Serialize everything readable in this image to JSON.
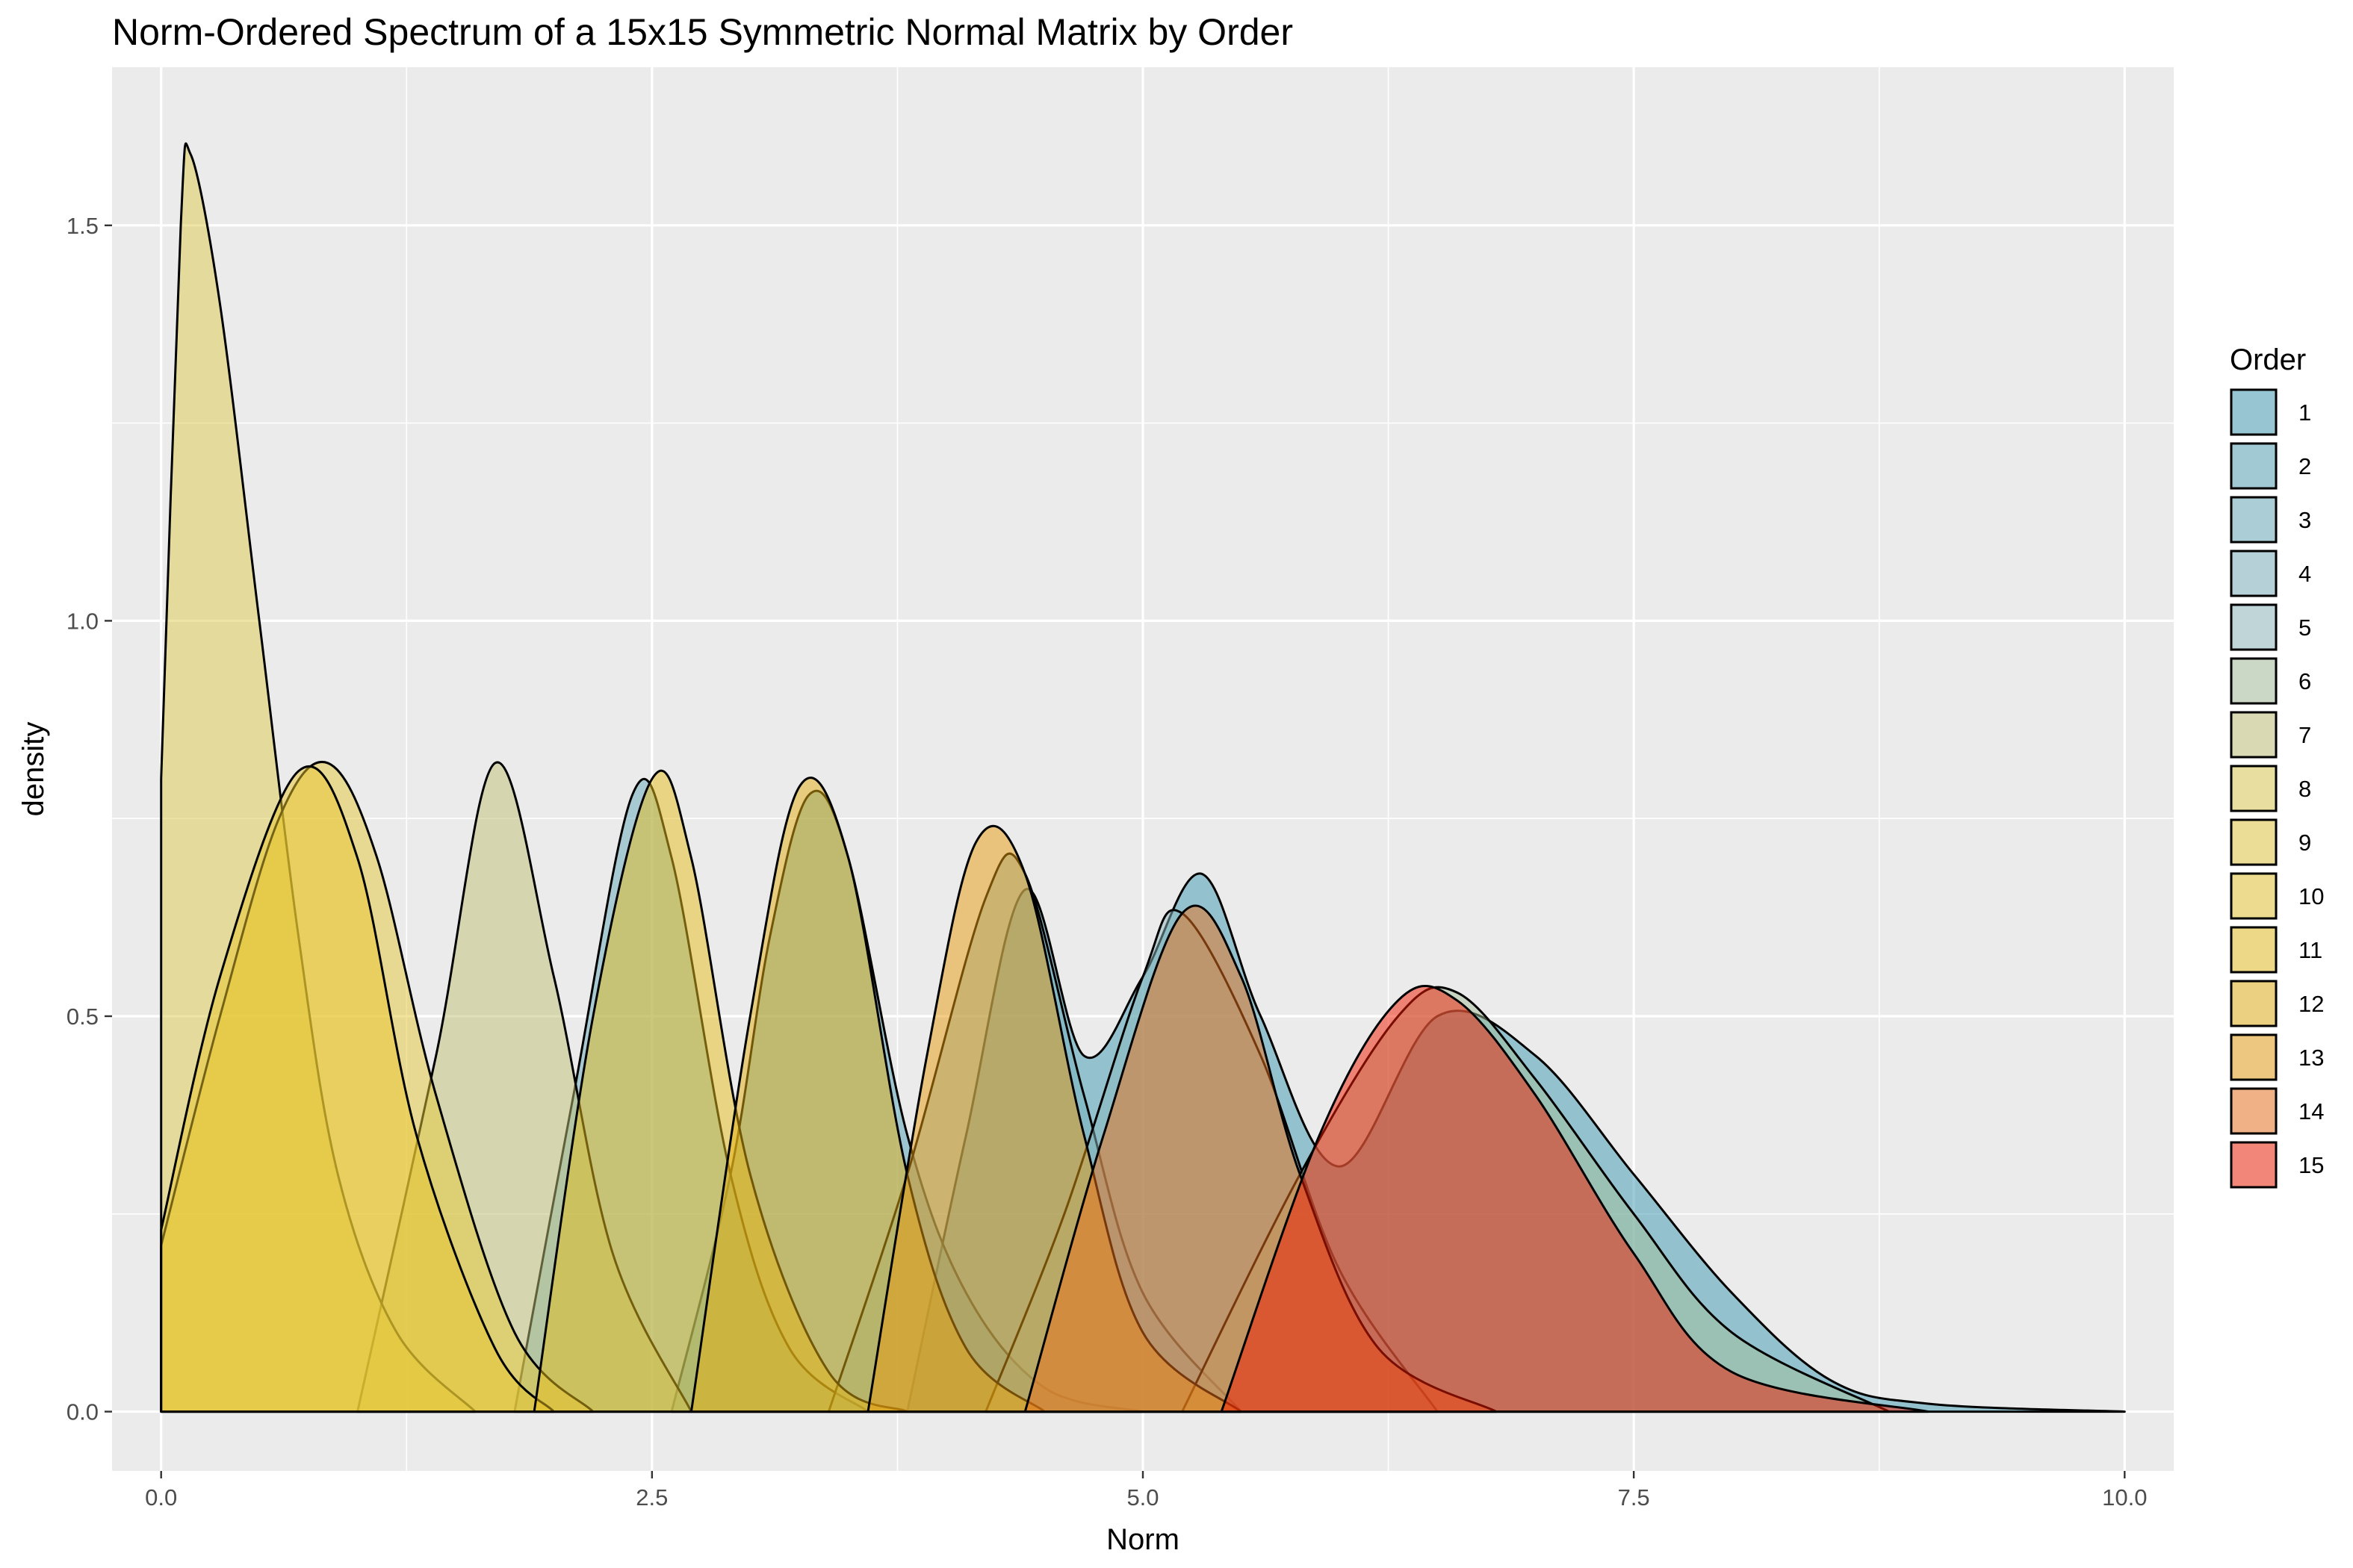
{
  "chart_data": {
    "type": "area",
    "title": "Norm-Ordered Spectrum of a 15x15 Symmetric Normal Matrix by Order",
    "xlabel": "Norm",
    "ylabel": "density",
    "xlim": [
      -0.25,
      10.25
    ],
    "ylim": [
      -0.075,
      1.7
    ],
    "x_ticks": [
      0.0,
      2.5,
      5.0,
      7.5,
      10.0
    ],
    "x_tick_labels": [
      "0.0",
      "2.5",
      "5.0",
      "7.5",
      "10.0"
    ],
    "y_ticks": [
      0.0,
      0.5,
      1.0,
      1.5
    ],
    "y_tick_labels": [
      "0.0",
      "0.5",
      "1.0",
      "1.5"
    ],
    "grid": true,
    "legend": {
      "title": "Order",
      "position": "right"
    },
    "series": [
      {
        "name": "1",
        "color": "#3B9AB2",
        "points": [
          [
            3.8,
            0
          ],
          [
            4.1,
            0.35
          ],
          [
            4.4,
            0.66
          ],
          [
            4.7,
            0.45
          ],
          [
            5.0,
            0.55
          ],
          [
            5.3,
            0.68
          ],
          [
            5.6,
            0.5
          ],
          [
            6.0,
            0.31
          ],
          [
            6.5,
            0.5
          ],
          [
            7.0,
            0.45
          ],
          [
            7.5,
            0.3
          ],
          [
            8.0,
            0.15
          ],
          [
            8.5,
            0.04
          ],
          [
            9.0,
            0.01
          ],
          [
            10.0,
            0
          ]
        ]
      },
      {
        "name": "2",
        "color": "#4DA0B5",
        "points": [
          [
            2.6,
            0
          ],
          [
            2.9,
            0.3
          ],
          [
            3.1,
            0.6
          ],
          [
            3.3,
            0.78
          ],
          [
            3.5,
            0.7
          ],
          [
            3.8,
            0.35
          ],
          [
            4.1,
            0.15
          ],
          [
            4.5,
            0.03
          ],
          [
            5.0,
            0
          ]
        ]
      },
      {
        "name": "3",
        "color": "#62A8B9",
        "points": [
          [
            1.8,
            0
          ],
          [
            2.1,
            0.4
          ],
          [
            2.4,
            0.78
          ],
          [
            2.6,
            0.7
          ],
          [
            2.9,
            0.3
          ],
          [
            3.2,
            0.08
          ],
          [
            3.6,
            0
          ]
        ]
      },
      {
        "name": "4",
        "color": "#77B0BC",
        "points": [
          [
            3.4,
            0
          ],
          [
            3.8,
            0.3
          ],
          [
            4.2,
            0.65
          ],
          [
            4.4,
            0.68
          ],
          [
            4.7,
            0.4
          ],
          [
            5.0,
            0.15
          ],
          [
            5.5,
            0
          ]
        ]
      },
      {
        "name": "5",
        "color": "#8CB8BC",
        "points": [
          [
            4.2,
            0
          ],
          [
            4.6,
            0.25
          ],
          [
            5.0,
            0.55
          ],
          [
            5.2,
            0.63
          ],
          [
            5.6,
            0.45
          ],
          [
            6.0,
            0.18
          ],
          [
            6.5,
            0
          ]
        ]
      },
      {
        "name": "6",
        "color": "#A3BE9A",
        "points": [
          [
            5.2,
            0
          ],
          [
            5.8,
            0.3
          ],
          [
            6.3,
            0.5
          ],
          [
            6.6,
            0.53
          ],
          [
            7.0,
            0.42
          ],
          [
            7.5,
            0.25
          ],
          [
            8.0,
            0.1
          ],
          [
            8.8,
            0
          ]
        ]
      },
      {
        "name": "7",
        "color": "#C0C274",
        "points": [
          [
            1.0,
            0
          ],
          [
            1.4,
            0.45
          ],
          [
            1.7,
            0.82
          ],
          [
            2.0,
            0.55
          ],
          [
            2.3,
            0.2
          ],
          [
            2.7,
            0
          ]
        ]
      },
      {
        "name": "8",
        "color": "#DDC94E",
        "points": [
          [
            0.0,
            0.8
          ],
          [
            0.1,
            1.5
          ],
          [
            0.15,
            1.59
          ],
          [
            0.3,
            1.4
          ],
          [
            0.5,
            1.0
          ],
          [
            0.7,
            0.6
          ],
          [
            0.9,
            0.3
          ],
          [
            1.2,
            0.1
          ],
          [
            1.6,
            0
          ]
        ]
      },
      {
        "name": "9",
        "color": "#E6C83A",
        "points": [
          [
            0.0,
            0.21
          ],
          [
            0.3,
            0.5
          ],
          [
            0.6,
            0.75
          ],
          [
            0.85,
            0.82
          ],
          [
            1.1,
            0.7
          ],
          [
            1.4,
            0.4
          ],
          [
            1.8,
            0.1
          ],
          [
            2.2,
            0
          ]
        ]
      },
      {
        "name": "10",
        "color": "#E8C52B",
        "points": [
          [
            0.0,
            0.23
          ],
          [
            0.3,
            0.55
          ],
          [
            0.7,
            0.81
          ],
          [
            1.0,
            0.7
          ],
          [
            1.3,
            0.35
          ],
          [
            1.7,
            0.08
          ],
          [
            2.0,
            0
          ]
        ]
      },
      {
        "name": "11",
        "color": "#E5BD1C",
        "points": [
          [
            1.9,
            0
          ],
          [
            2.2,
            0.5
          ],
          [
            2.5,
            0.8
          ],
          [
            2.7,
            0.7
          ],
          [
            3.0,
            0.3
          ],
          [
            3.4,
            0.05
          ],
          [
            3.8,
            0
          ]
        ]
      },
      {
        "name": "12",
        "color": "#E4AE10",
        "points": [
          [
            2.7,
            0
          ],
          [
            3.0,
            0.5
          ],
          [
            3.25,
            0.79
          ],
          [
            3.5,
            0.7
          ],
          [
            3.8,
            0.3
          ],
          [
            4.1,
            0.08
          ],
          [
            4.5,
            0
          ]
        ]
      },
      {
        "name": "13",
        "color": "#E89A0E",
        "points": [
          [
            3.6,
            0
          ],
          [
            3.9,
            0.45
          ],
          [
            4.15,
            0.72
          ],
          [
            4.4,
            0.68
          ],
          [
            4.7,
            0.35
          ],
          [
            5.0,
            0.1
          ],
          [
            5.5,
            0
          ]
        ]
      },
      {
        "name": "14",
        "color": "#EB6F17",
        "points": [
          [
            4.4,
            0
          ],
          [
            4.8,
            0.35
          ],
          [
            5.2,
            0.63
          ],
          [
            5.5,
            0.55
          ],
          [
            5.8,
            0.3
          ],
          [
            6.2,
            0.08
          ],
          [
            6.8,
            0
          ]
        ]
      },
      {
        "name": "15",
        "color": "#F21A00",
        "points": [
          [
            5.4,
            0
          ],
          [
            5.9,
            0.35
          ],
          [
            6.3,
            0.52
          ],
          [
            6.6,
            0.52
          ],
          [
            7.0,
            0.4
          ],
          [
            7.5,
            0.2
          ],
          [
            8.0,
            0.05
          ],
          [
            9.0,
            0
          ]
        ]
      }
    ]
  }
}
